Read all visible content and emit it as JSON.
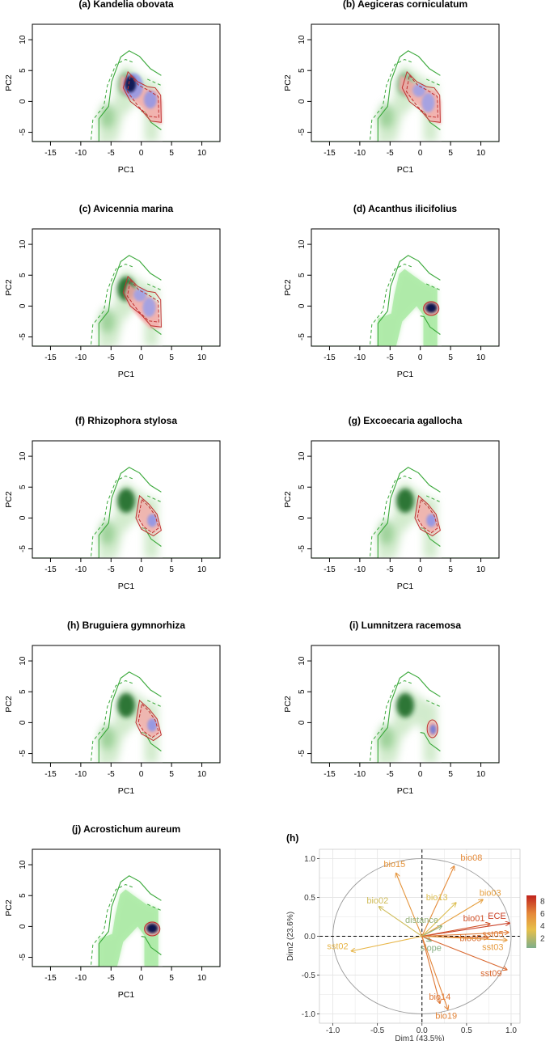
{
  "chart_data": [
    {
      "type": "niche-density",
      "panel": "a",
      "title": "(a) Kandelia obovata",
      "xlabel": "PC1",
      "ylabel": "PC2",
      "xlim": [
        -18,
        13
      ],
      "ylim": [
        -6.5,
        12.5
      ],
      "xticks": [
        -15,
        -10,
        -5,
        0,
        5,
        10
      ],
      "yticks": [
        -5,
        0,
        5,
        10
      ],
      "species_niche": "broad-upper",
      "overlap_blobs": true
    },
    {
      "type": "niche-density",
      "panel": "b",
      "title": "(b) Aegiceras corniculatum",
      "xlabel": "PC1",
      "ylabel": "PC2",
      "xlim": [
        -18,
        13
      ],
      "ylim": [
        -6.5,
        12.5
      ],
      "xticks": [
        -15,
        -10,
        -5,
        0,
        5,
        10
      ],
      "yticks": [
        -5,
        0,
        5,
        10
      ],
      "species_niche": "broad-upper",
      "overlap_blobs": true
    },
    {
      "type": "niche-density",
      "panel": "c",
      "title": "(c) Avicennia marina",
      "xlabel": "PC1",
      "ylabel": "PC2",
      "xlim": [
        -18,
        13
      ],
      "ylim": [
        -6.5,
        12.5
      ],
      "xticks": [
        -15,
        -10,
        -5,
        0,
        5,
        10
      ],
      "yticks": [
        -5,
        0,
        5,
        10
      ],
      "species_niche": "broad",
      "overlap_blobs": true
    },
    {
      "type": "niche-density",
      "panel": "d",
      "title": "(d) Acanthus ilicifolius",
      "xlabel": "PC1",
      "ylabel": "PC2",
      "xlim": [
        -18,
        13
      ],
      "ylim": [
        -6.5,
        12.5
      ],
      "xticks": [
        -15,
        -10,
        -5,
        0,
        5,
        10
      ],
      "yticks": [
        -5,
        0,
        5,
        10
      ],
      "species_niche": "narrow",
      "overlap_blobs": false
    },
    {
      "type": "niche-density",
      "panel": "f",
      "title": "(f) Rhizophora stylosa",
      "xlabel": "PC1",
      "ylabel": "PC2",
      "xlim": [
        -18,
        13
      ],
      "ylim": [
        -6.5,
        12.5
      ],
      "xticks": [
        -15,
        -10,
        -5,
        0,
        5,
        10
      ],
      "yticks": [
        -5,
        0,
        5,
        10
      ],
      "species_niche": "medium",
      "overlap_blobs": true
    },
    {
      "type": "niche-density",
      "panel": "g",
      "title": "(g) Excoecaria agallocha",
      "xlabel": "PC1",
      "ylabel": "PC2",
      "xlim": [
        -18,
        13
      ],
      "ylim": [
        -6.5,
        12.5
      ],
      "xticks": [
        -15,
        -10,
        -5,
        0,
        5,
        10
      ],
      "yticks": [
        -5,
        0,
        5,
        10
      ],
      "species_niche": "medium",
      "overlap_blobs": true
    },
    {
      "type": "niche-density",
      "panel": "h",
      "title": "(h) Bruguiera gymnorhiza",
      "xlabel": "PC1",
      "ylabel": "PC2",
      "xlim": [
        -18,
        13
      ],
      "ylim": [
        -6.5,
        12.5
      ],
      "xticks": [
        -15,
        -10,
        -5,
        0,
        5,
        10
      ],
      "yticks": [
        -5,
        0,
        5,
        10
      ],
      "species_niche": "medium",
      "overlap_blobs": true
    },
    {
      "type": "niche-density",
      "panel": "i",
      "title": "(i) Lumnitzera racemosa",
      "xlabel": "PC1",
      "ylabel": "PC2",
      "xlim": [
        -18,
        13
      ],
      "ylim": [
        -6.5,
        12.5
      ],
      "xticks": [
        -15,
        -10,
        -5,
        0,
        5,
        10
      ],
      "yticks": [
        -5,
        0,
        5,
        10
      ],
      "species_niche": "small",
      "overlap_blobs": false
    },
    {
      "type": "niche-density",
      "panel": "j",
      "title": "(j) Acrostichum aureum",
      "xlabel": "PC1",
      "ylabel": "PC2",
      "xlim": [
        -18,
        13
      ],
      "ylim": [
        -6.5,
        12.5
      ],
      "xticks": [
        -15,
        -10,
        -5,
        0,
        5,
        10
      ],
      "yticks": [
        -5,
        0,
        5,
        10
      ],
      "species_niche": "narrow",
      "overlap_blobs": false
    },
    {
      "type": "pca-variable-biplot",
      "panel": "h",
      "title": "(h)",
      "xlabel": "Dim1 (43.5%)",
      "ylabel": "Dim2 (23.6%)",
      "xlim": [
        -1.15,
        1.1
      ],
      "ylim": [
        -1.12,
        1.12
      ],
      "xticks": [
        "-1.0",
        "-0.5",
        "0.0",
        "0.5",
        "1.0"
      ],
      "yticks": [
        "-1.0",
        "-0.5",
        "0.0",
        "0.5",
        "1.0"
      ],
      "colorbar": {
        "ticks": [
          "2",
          "4",
          "6",
          "8"
        ],
        "min": 0.5,
        "max": 9,
        "colors": [
          "#7fae8a",
          "#e7c04a",
          "#e58a3a",
          "#c0231d"
        ]
      },
      "variables": [
        {
          "name": "bio08",
          "x": 0.36,
          "y": 0.9,
          "contrib": 6.0
        },
        {
          "name": "bio15",
          "x": -0.29,
          "y": 0.81,
          "contrib": 5.5
        },
        {
          "name": "bio03",
          "x": 0.68,
          "y": 0.47,
          "contrib": 5.0
        },
        {
          "name": "bio13",
          "x": 0.38,
          "y": 0.43,
          "contrib": 3.2
        },
        {
          "name": "bio02",
          "x": -0.48,
          "y": 0.38,
          "contrib": 2.8
        },
        {
          "name": "ECE",
          "x": 0.98,
          "y": 0.17,
          "contrib": 8.2
        },
        {
          "name": "bio01",
          "x": 0.76,
          "y": 0.16,
          "contrib": 7.6
        },
        {
          "name": "distance",
          "x": 0.22,
          "y": 0.13,
          "contrib": 1.2
        },
        {
          "name": "sst05",
          "x": 0.97,
          "y": 0.05,
          "contrib": 6.5
        },
        {
          "name": "bio05",
          "x": 0.74,
          "y": -0.02,
          "contrib": 6.8
        },
        {
          "name": "sst03",
          "x": 0.95,
          "y": -0.05,
          "contrib": 5.2
        },
        {
          "name": "slope",
          "x": 0.1,
          "y": -0.06,
          "contrib": 0.8
        },
        {
          "name": "sst02",
          "x": -0.79,
          "y": -0.19,
          "contrib": 4.0
        },
        {
          "name": "sst09",
          "x": 0.95,
          "y": -0.43,
          "contrib": 7.0
        },
        {
          "name": "bio14",
          "x": 0.2,
          "y": -0.86,
          "contrib": 6.6
        },
        {
          "name": "bio19",
          "x": 0.29,
          "y": -0.94,
          "contrib": 6.2
        }
      ]
    }
  ]
}
